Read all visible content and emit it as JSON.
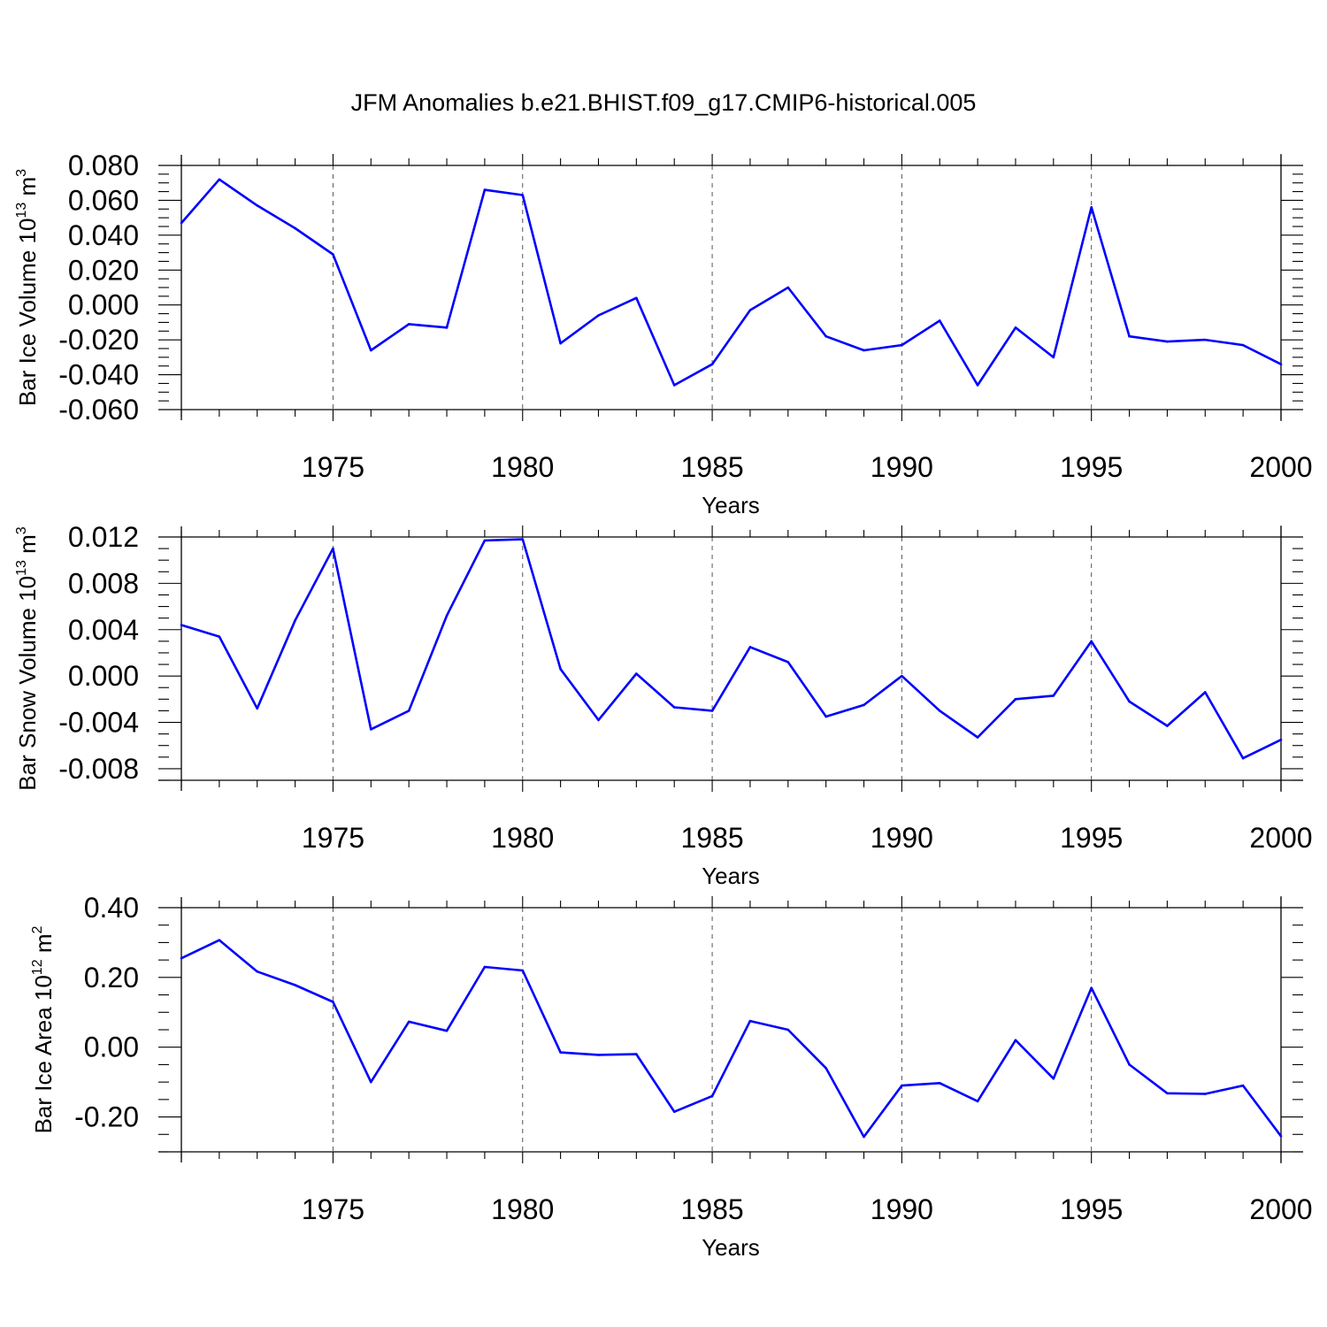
{
  "title": "JFM Anomalies b.e21.BHIST.f09_g17.CMIP6-historical.005",
  "colors": {
    "series": "#0000ff"
  },
  "chart_data": [
    {
      "type": "line",
      "title": "",
      "xlabel": "Years",
      "ylabel": {
        "base": "Bar Ice Volume 10",
        "exp": "13",
        "unit": " m",
        "unit_exp": "3"
      },
      "xlim": [
        1971,
        2000
      ],
      "ylim": [
        -0.06,
        0.08
      ],
      "ymajor": [
        -0.06,
        -0.04,
        -0.02,
        0.0,
        0.02,
        0.04,
        0.06,
        0.08
      ],
      "yminor_step": 0.005,
      "ytick_labels": [
        "-0.060",
        "-0.040",
        "-0.020",
        "0.000",
        "0.020",
        "0.040",
        "0.060",
        "0.080"
      ],
      "xticks": [
        1975,
        1980,
        1985,
        1990,
        1995,
        2000
      ],
      "xtick_labels": [
        "1975",
        "1980",
        "1985",
        "1990",
        "1995",
        "2000"
      ],
      "grid_x": true,
      "x": [
        1971,
        1972,
        1973,
        1974,
        1975,
        1976,
        1977,
        1978,
        1979,
        1980,
        1981,
        1982,
        1983,
        1984,
        1985,
        1986,
        1987,
        1988,
        1989,
        1990,
        1991,
        1992,
        1993,
        1994,
        1995,
        1996,
        1997,
        1998,
        1999,
        2000
      ],
      "series": [
        {
          "values": [
            0.047,
            0.072,
            0.057,
            0.044,
            0.029,
            -0.026,
            -0.011,
            -0.013,
            0.066,
            0.063,
            -0.022,
            -0.006,
            0.004,
            -0.046,
            -0.034,
            -0.003,
            0.01,
            -0.018,
            -0.026,
            -0.023,
            -0.009,
            -0.046,
            -0.013,
            -0.03,
            0.056,
            -0.018,
            -0.021,
            -0.02,
            -0.023,
            -0.034
          ]
        }
      ]
    },
    {
      "type": "line",
      "title": "",
      "xlabel": "Years",
      "ylabel": {
        "base": "Bar Snow Volume 10",
        "exp": "13",
        "unit": " m",
        "unit_exp": "3"
      },
      "xlim": [
        1971,
        2000
      ],
      "ylim": [
        -0.009,
        0.012
      ],
      "ymajor": [
        -0.008,
        -0.004,
        0.0,
        0.004,
        0.008,
        0.012
      ],
      "yminor_step": 0.001,
      "ytick_labels": [
        "-0.008",
        "-0.004",
        "0.000",
        "0.004",
        "0.008",
        "0.012"
      ],
      "xticks": [
        1975,
        1980,
        1985,
        1990,
        1995,
        2000
      ],
      "xtick_labels": [
        "1975",
        "1980",
        "1985",
        "1990",
        "1995",
        "2000"
      ],
      "grid_x": true,
      "x": [
        1971,
        1972,
        1973,
        1974,
        1975,
        1976,
        1977,
        1978,
        1979,
        1980,
        1981,
        1982,
        1983,
        1984,
        1985,
        1986,
        1987,
        1988,
        1989,
        1990,
        1991,
        1992,
        1993,
        1994,
        1995,
        1996,
        1997,
        1998,
        1999,
        2000
      ],
      "series": [
        {
          "values": [
            0.0044,
            0.0034,
            -0.0028,
            0.0048,
            0.011,
            -0.0046,
            -0.003,
            0.0052,
            0.0117,
            0.0118,
            0.0006,
            -0.0038,
            0.0002,
            -0.0027,
            -0.003,
            0.0025,
            0.0012,
            -0.0035,
            -0.0025,
            0.0,
            -0.003,
            -0.0053,
            -0.002,
            -0.0017,
            0.003,
            -0.0022,
            -0.0043,
            -0.0014,
            -0.0071,
            -0.0055
          ]
        }
      ]
    },
    {
      "type": "line",
      "title": "",
      "xlabel": "Years",
      "ylabel": {
        "base": "Bar Ice Area 10",
        "exp": "12",
        "unit": " m",
        "unit_exp": "2"
      },
      "xlim": [
        1971,
        2000
      ],
      "ylim": [
        -0.3,
        0.4
      ],
      "ymajor": [
        -0.2,
        0.0,
        0.2,
        0.4
      ],
      "yminor_step": 0.05,
      "ytick_labels": [
        "-0.20",
        "0.00",
        "0.20",
        "0.40"
      ],
      "xticks": [
        1975,
        1980,
        1985,
        1990,
        1995,
        2000
      ],
      "xtick_labels": [
        "1975",
        "1980",
        "1985",
        "1990",
        "1995",
        "2000"
      ],
      "grid_x": true,
      "x": [
        1971,
        1972,
        1973,
        1974,
        1975,
        1976,
        1977,
        1978,
        1979,
        1980,
        1981,
        1982,
        1983,
        1984,
        1985,
        1986,
        1987,
        1988,
        1989,
        1990,
        1991,
        1992,
        1993,
        1994,
        1995,
        1996,
        1997,
        1998,
        1999,
        2000
      ],
      "series": [
        {
          "values": [
            0.255,
            0.307,
            0.217,
            0.178,
            0.13,
            -0.1,
            0.073,
            0.047,
            0.23,
            0.22,
            -0.015,
            -0.022,
            -0.02,
            -0.185,
            -0.14,
            0.075,
            0.05,
            -0.06,
            -0.257,
            -0.11,
            -0.103,
            -0.155,
            0.02,
            -0.09,
            0.17,
            -0.05,
            -0.132,
            -0.134,
            -0.11,
            -0.255
          ]
        }
      ]
    }
  ]
}
